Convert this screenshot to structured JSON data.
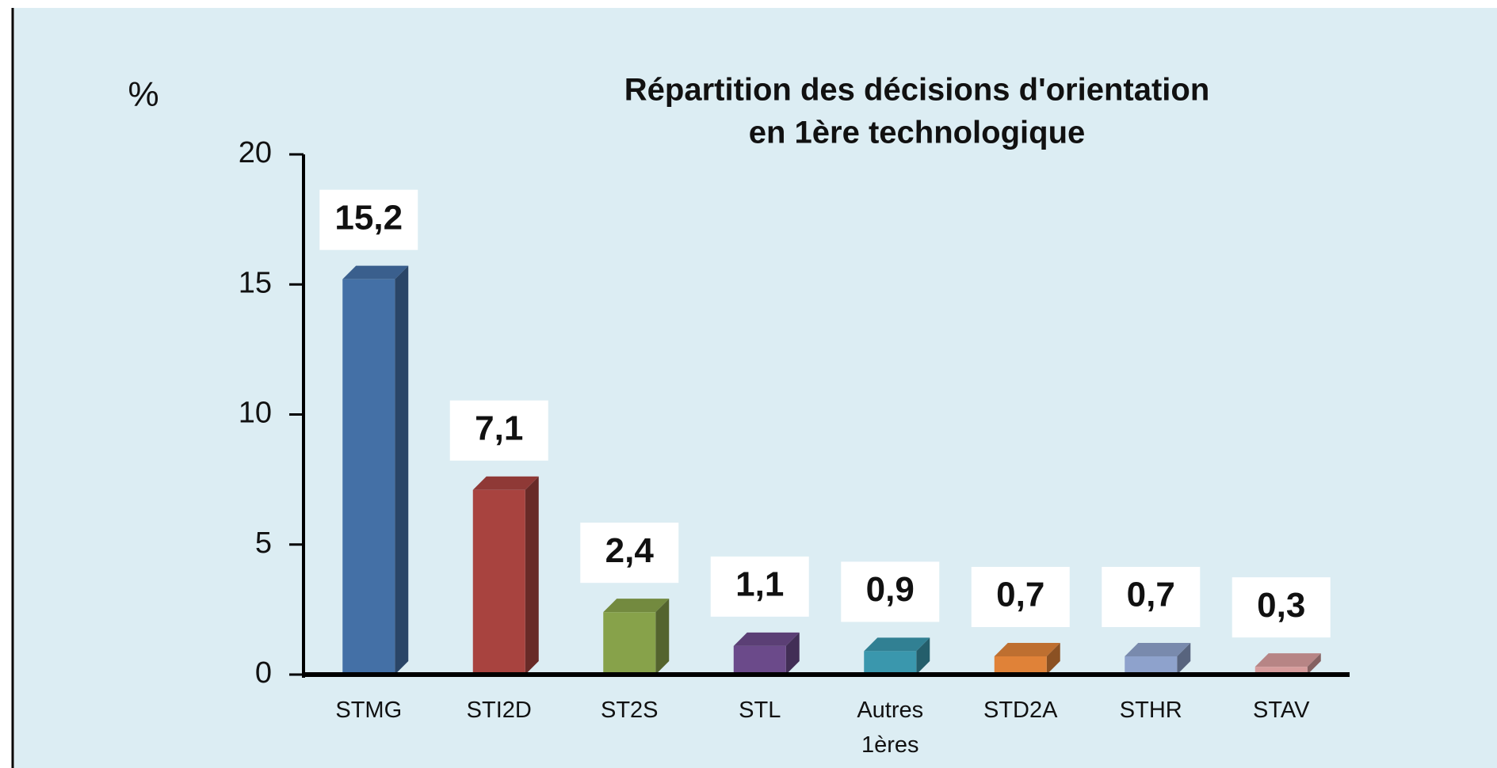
{
  "chart_data": {
    "type": "bar",
    "title": [
      "Répartition des décisions d'orientation",
      "en 1ère technologique"
    ],
    "y_label": "%",
    "categories": [
      "STMG",
      "STI2D",
      "ST2S",
      "STL",
      "Autres 1ères",
      "STD2A",
      "STHR",
      "STAV"
    ],
    "values": [
      15.2,
      7.1,
      2.4,
      1.1,
      0.9,
      0.7,
      0.7,
      0.3
    ],
    "value_labels": [
      "15,2",
      "7,1",
      "2,4",
      "1,1",
      "0,9",
      "0,7",
      "0,7",
      "0,3"
    ],
    "colors": [
      "#4470a6",
      "#a8433f",
      "#87a24a",
      "#6b4a8a",
      "#3a97ad",
      "#e08238",
      "#8ea2cc",
      "#d79c9c"
    ],
    "ylim": [
      0,
      20
    ],
    "yticks": [
      0,
      5,
      10,
      15,
      20
    ]
  }
}
